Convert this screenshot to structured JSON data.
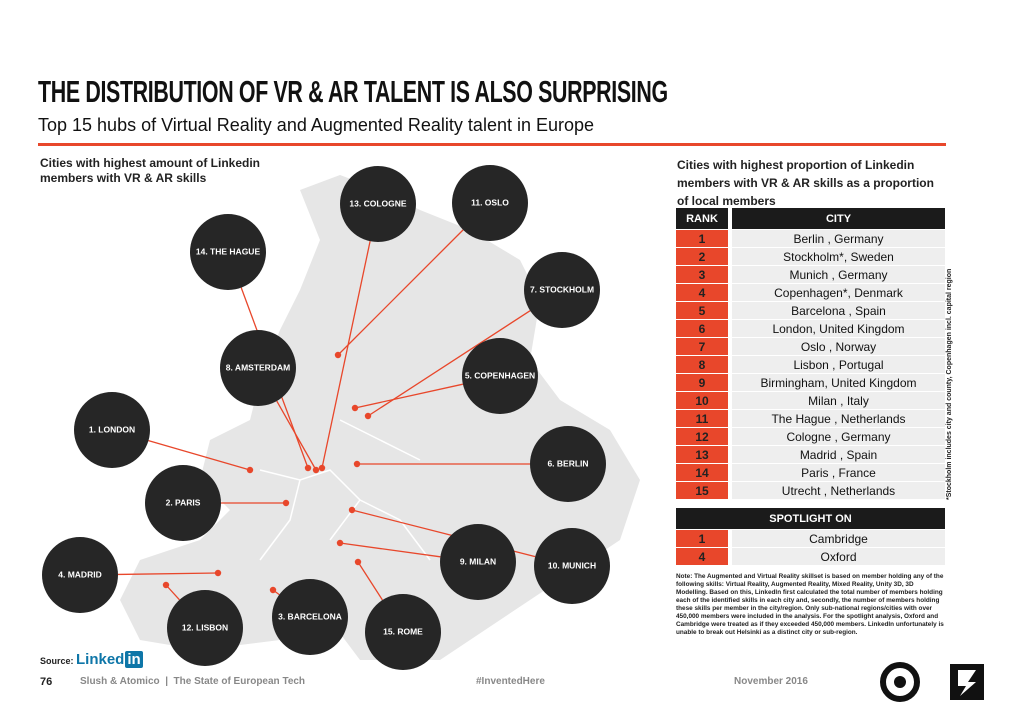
{
  "header": {
    "title": "THE DISTRIBUTION OF VR & AR TALENT IS ALSO SURPRISING",
    "subtitle": "Top 15 hubs of Virtual Reality and Augmented Reality talent in Europe"
  },
  "map": {
    "caption": "Cities with highest amount of Linkedin members with VR & AR skills",
    "hubs": [
      "13. COLOGNE",
      "11. OSLO",
      "14. THE HAGUE",
      "7. STOCKHOLM",
      "8. AMSTERDAM",
      "5. COPENHAGEN",
      "1. LONDON",
      "6. BERLIN",
      "2. PARIS",
      "10. MUNICH",
      "9. MILAN",
      "4. MADRID",
      "12. LISBON",
      "3. BARCELONA",
      "15. ROME"
    ]
  },
  "table": {
    "caption": "Cities with highest proportion of Linkedin members with VR & AR skills as a proportion of local members",
    "headers": [
      "RANK",
      "CITY"
    ],
    "rows": [
      [
        1,
        "Berlin , Germany"
      ],
      [
        2,
        "Stockholm*, Sweden"
      ],
      [
        3,
        "Munich , Germany"
      ],
      [
        4,
        "Copenhagen*, Denmark"
      ],
      [
        5,
        "Barcelona , Spain"
      ],
      [
        6,
        "London, United Kingdom"
      ],
      [
        7,
        "Oslo , Norway"
      ],
      [
        8,
        "Lisbon , Portugal"
      ],
      [
        9,
        "Birmingham, United Kingdom"
      ],
      [
        10,
        "Milan , Italy"
      ],
      [
        11,
        "The Hague , Netherlands"
      ],
      [
        12,
        "Cologne , Germany"
      ],
      [
        13,
        "Madrid , Spain"
      ],
      [
        14,
        "Paris , France"
      ],
      [
        15,
        "Utrecht , Netherlands"
      ]
    ],
    "side_note": "*Stockholm includes city and county, Copenhagen incl. capital region"
  },
  "spotlight": {
    "header": "SPOTLIGHT ON",
    "rows": [
      [
        1,
        "Cambridge"
      ],
      [
        4,
        "Oxford"
      ]
    ]
  },
  "note": "Note: The Augmented and Virtual Reality skillset is based on member holding any of the following skills: Virtual Reality, Augmented Reality, Mixed Reality, Unity 3D, 3D Modelling. Based on this, LinkedIn first calculated the total number of members holding each of the identified skills in each city and, secondly, the number of members holding these skills per member in the city/region. Only sub-national regions/cities with over 450,000 members were included in the analysis. For the spotlight analysis, Oxford and Cambridge were treated as if they exceeded 450,000 members. LinkedIn unfortunately is unable to break out Helsinki as a distinct city or sub-region.",
  "footer": {
    "source": "Source:",
    "logo_text": "Linked",
    "logo_box": "in",
    "page": "76",
    "publisher": "Slush & Atomico  |  The State of European Tech",
    "hashtag": "#InventedHere",
    "date": "November 2016"
  }
}
